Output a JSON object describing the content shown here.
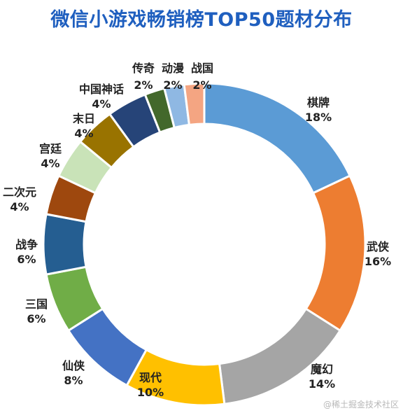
{
  "colors": {
    "title": "#1f5fbf",
    "watermark": "#b8b8b8"
  },
  "watermark": "@稀土掘金技术社区",
  "chart_data": {
    "type": "donut",
    "title": "微信小游戏畅销榜TOP50题材分布",
    "series": [
      {
        "name": "棋牌",
        "value": 18,
        "label": "18%",
        "color": "#5b9bd5"
      },
      {
        "name": "武侠",
        "value": 16,
        "label": "16%",
        "color": "#ed7d31"
      },
      {
        "name": "魔幻",
        "value": 14,
        "label": "14%",
        "color": "#a5a5a5"
      },
      {
        "name": "现代",
        "value": 10,
        "label": "10%",
        "color": "#ffc000"
      },
      {
        "name": "仙侠",
        "value": 8,
        "label": "8%",
        "color": "#4472c4"
      },
      {
        "name": "三国",
        "value": 6,
        "label": "6%",
        "color": "#70ad47"
      },
      {
        "name": "战争",
        "value": 6,
        "label": "6%",
        "color": "#255e91"
      },
      {
        "name": "二次元",
        "value": 4,
        "label": "4%",
        "color": "#9e480e"
      },
      {
        "name": "宫廷",
        "value": 4,
        "label": "4%",
        "color": "#c9e3b8"
      },
      {
        "name": "末日",
        "value": 4,
        "label": "4%",
        "color": "#997300"
      },
      {
        "name": "中国神话",
        "value": 4,
        "label": "4%",
        "color": "#264478"
      },
      {
        "name": "传奇",
        "value": 2,
        "label": "2%",
        "color": "#43682b"
      },
      {
        "name": "动漫",
        "value": 2,
        "label": "2%",
        "color": "#8fb8e3"
      },
      {
        "name": "战国",
        "value": 2,
        "label": "2%",
        "color": "#f4a582"
      }
    ]
  }
}
